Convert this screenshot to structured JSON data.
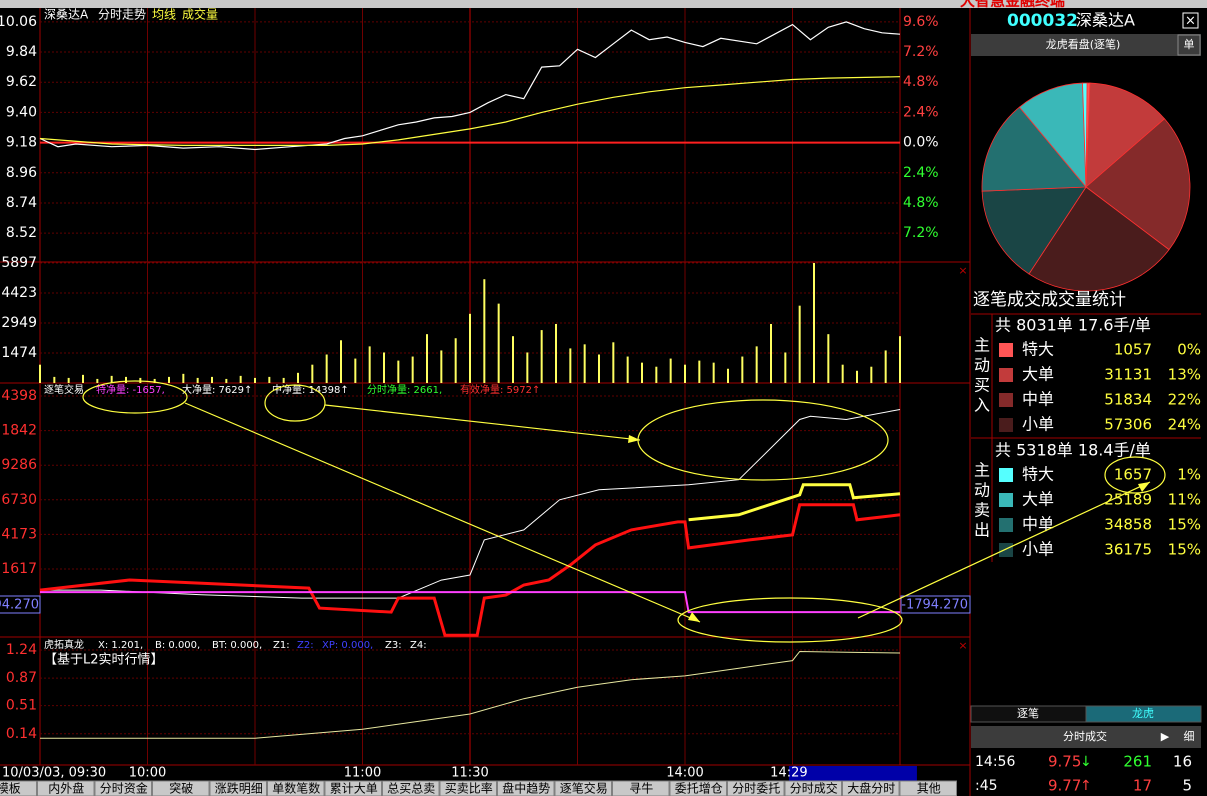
{
  "top_title": "大智慧金融终端",
  "header": {
    "title": "深桑达A",
    "items": [
      "分时走势",
      "均线",
      "成交量"
    ]
  },
  "time_axis": {
    "xlim": [
      0,
      240
    ],
    "ticks": [
      {
        "value": 0,
        "label": "10/03/03, 09:30"
      },
      {
        "value": 30,
        "label": "10:00"
      },
      {
        "value": 90,
        "label": "11:00"
      },
      {
        "value": 120,
        "label": "11:30"
      },
      {
        "value": 180,
        "label": "14:00"
      },
      {
        "value": 209,
        "label": "14:29"
      }
    ]
  },
  "price_panel": {
    "ylim": [
      8.31,
      10.11
    ],
    "yticks": [
      10.06,
      9.84,
      9.62,
      {
        "value": 9.4,
        "label": "9.40"
      },
      9.18,
      8.96,
      8.74,
      8.52
    ],
    "right_labels": [
      "9.6%",
      "7.2%",
      "4.8%",
      "2.4%",
      "0.0%",
      "2.4%",
      "4.8%",
      "7.2%"
    ],
    "series": [
      {
        "name": "价格",
        "color": "#ffffff",
        "x": [
          0,
          5,
          10,
          20,
          30,
          40,
          50,
          60,
          70,
          80,
          85,
          90,
          95,
          100,
          105,
          110,
          115,
          120,
          125,
          130,
          135,
          140,
          145,
          150,
          155,
          160,
          165,
          170,
          175,
          180,
          185,
          190,
          200,
          205,
          210,
          215,
          220,
          225,
          230,
          235,
          240
        ],
        "values": [
          9.21,
          9.15,
          9.17,
          9.15,
          9.16,
          9.14,
          9.15,
          9.13,
          9.15,
          9.17,
          9.21,
          9.23,
          9.27,
          9.31,
          9.33,
          9.36,
          9.37,
          9.4,
          9.47,
          9.53,
          9.5,
          9.73,
          9.74,
          9.86,
          9.8,
          9.9,
          10.0,
          9.93,
          9.95,
          9.91,
          9.88,
          9.94,
          9.9,
          9.97,
          10.04,
          9.93,
          10.02,
          10.06,
          10.01,
          9.98,
          9.97
        ]
      },
      {
        "name": "均线",
        "color": "#ffff40",
        "x": [
          0,
          20,
          40,
          60,
          80,
          90,
          100,
          110,
          120,
          130,
          140,
          150,
          160,
          170,
          180,
          190,
          200,
          210,
          220,
          240
        ],
        "values": [
          9.21,
          9.17,
          9.16,
          9.16,
          9.16,
          9.17,
          9.2,
          9.24,
          9.28,
          9.33,
          9.4,
          9.46,
          9.51,
          9.55,
          9.58,
          9.6,
          9.62,
          9.64,
          9.65,
          9.66
        ]
      }
    ]
  },
  "volume_panel": {
    "ylim": [
      0,
      5897
    ],
    "yticks": [
      5897,
      4423,
      2949,
      1474
    ],
    "color": "#ffff60",
    "x": [
      0,
      4,
      8,
      12,
      16,
      20,
      24,
      28,
      32,
      36,
      40,
      44,
      48,
      52,
      56,
      60,
      64,
      68,
      72,
      76,
      80,
      84,
      88,
      92,
      96,
      100,
      104,
      108,
      112,
      116,
      120,
      124,
      128,
      132,
      136,
      140,
      144,
      148,
      152,
      156,
      160,
      164,
      168,
      172,
      176,
      180,
      184,
      188,
      192,
      196,
      200,
      204,
      208,
      212,
      216,
      220,
      224,
      228,
      232,
      236,
      240
    ],
    "values": [
      900,
      300,
      250,
      400,
      200,
      350,
      300,
      250,
      200,
      300,
      450,
      250,
      300,
      200,
      350,
      250,
      300,
      250,
      500,
      900,
      1400,
      2100,
      1200,
      1800,
      1500,
      1100,
      1300,
      2400,
      1600,
      2200,
      3400,
      5100,
      3900,
      2300,
      1500,
      2600,
      2900,
      1700,
      1900,
      1400,
      2000,
      1300,
      1000,
      800,
      1200,
      900,
      1100,
      1000,
      700,
      1300,
      1800,
      2900,
      1500,
      3800,
      5897,
      2400,
      900,
      600,
      800,
      1600,
      2300
    ]
  },
  "flow_panel": {
    "header": [
      "逐笔交易",
      "特净量: -1657,",
      "大净量: 7629↑",
      "中净量: 14398↑",
      "分时净量: 2661,",
      "有效净量: 5972↑"
    ],
    "ylim": [
      -3407,
      15358
    ],
    "yticks": [
      {
        "value": 14398,
        "label": "4398"
      },
      {
        "value": 11842,
        "label": "1842"
      },
      9286,
      6730,
      4173,
      1617
    ],
    "net_label": "-1794.270",
    "series": [
      {
        "name": "有效净量",
        "color": "#ffffff",
        "width": 1,
        "x": [
          0,
          17,
          45,
          73,
          100,
          112,
          120,
          124,
          135,
          145,
          156,
          181,
          195,
          212,
          215,
          225,
          240
        ],
        "values": [
          61,
          61,
          -284,
          -532,
          -532,
          800,
          1172,
          3766,
          4507,
          6730,
          7471,
          7841,
          8212,
          12658,
          12900,
          12658,
          13399
        ]
      },
      {
        "name": "大净量",
        "color": "#ffff40",
        "width": 3,
        "x": [
          181,
          195,
          212,
          213,
          226,
          227,
          240
        ],
        "values": [
          5248,
          5618,
          7100,
          7841,
          7841,
          6878,
          7175
        ]
      },
      {
        "name": "中净量",
        "color": "#ff1010",
        "width": 3,
        "x": [
          0,
          25,
          75,
          78,
          98,
          100,
          110,
          113,
          122,
          124,
          130,
          135,
          142,
          148,
          155,
          165,
          178,
          180,
          181,
          198,
          210,
          212,
          227,
          228,
          240
        ],
        "values": [
          61,
          802,
          209,
          -1273,
          -1569,
          -532,
          -532,
          -3274,
          -3274,
          -532,
          -310,
          431,
          802,
          1913,
          3395,
          4507,
          5100,
          5100,
          3173,
          3766,
          4136,
          6359,
          6359,
          5248,
          5618
        ]
      },
      {
        "name": "特净量",
        "color": "#ff40ff",
        "width": 2,
        "x": [
          0,
          180,
          181,
          240
        ],
        "values": [
          -87,
          -87,
          -1569,
          -1569
        ]
      }
    ]
  },
  "dragon_panel": {
    "header": [
      "虎拓真龙",
      "X: 1.201,",
      "B: 0.000,",
      "BT: 0.000,",
      "Z1:",
      "Z2:",
      "XP: 0.000,",
      "Z3:",
      "Z4:"
    ],
    "subtitle": "【基于L2实时行情】",
    "ylim": [
      -0.27,
      1.41
    ],
    "yticks": [
      1.24,
      0.87,
      0.51,
      0.14
    ],
    "series": [
      {
        "name": "X",
        "color": "#e8e8a0",
        "x": [
          0,
          60,
          90,
          105,
          120,
          135,
          150,
          165,
          180,
          195,
          210,
          212,
          225,
          240
        ],
        "values": [
          0.08,
          0.08,
          0.2,
          0.3,
          0.4,
          0.6,
          0.75,
          0.85,
          0.9,
          1.0,
          1.1,
          1.22,
          1.21,
          1.2
        ]
      }
    ]
  },
  "side": {
    "code": "000032",
    "name": "深桑达A",
    "panel_title": "龙虎看盘(逐笔)",
    "unit_button": "单",
    "stats_title": "逐笔成交成交量统计",
    "buy": {
      "label": [
        "主",
        "动",
        "买",
        "入"
      ],
      "summary": "共 8031单 17.6手/单",
      "rows": [
        {
          "name": "特大",
          "value": 1057,
          "pct": "0%",
          "color": "#ff5555"
        },
        {
          "name": "大单",
          "value": 31131,
          "pct": "13%",
          "color": "#c23b3b"
        },
        {
          "name": "中单",
          "value": 51834,
          "pct": "22%",
          "color": "#852a2a"
        },
        {
          "name": "小单",
          "value": 57306,
          "pct": "24%",
          "color": "#4a1c1c"
        }
      ]
    },
    "sell": {
      "label": [
        "主",
        "动",
        "卖",
        "出"
      ],
      "summary": "共 5318单 18.4手/单",
      "rows": [
        {
          "name": "特大",
          "value": 1657,
          "pct": "1%",
          "color": "#55ffff"
        },
        {
          "name": "大单",
          "value": 25189,
          "pct": "11%",
          "color": "#3ab8b8"
        },
        {
          "name": "中单",
          "value": 34858,
          "pct": "15%",
          "color": "#237070"
        },
        {
          "name": "小单",
          "value": 36175,
          "pct": "15%",
          "color": "#1a4545"
        }
      ]
    },
    "tabs": [
      "逐笔",
      "龙虎"
    ],
    "trades_title": "分时成交",
    "detail_button": "细",
    "trades": [
      {
        "time": "14:56",
        "price": "9.75",
        "arrow": "↓",
        "volume": 261,
        "count": 16
      },
      {
        "time": ":45",
        "price": "9.77",
        "arrow": "↑",
        "volume": 17,
        "count": 5
      }
    ]
  },
  "bottom_tabs": [
    "模板",
    "内外盘",
    "分时资金",
    "突破",
    "涨跌明细",
    "单数笔数",
    "累计大单",
    "总买总卖",
    "买卖比率",
    "盘中趋势",
    "逐笔交易",
    "寻牛",
    "委托增仓",
    "分时委托",
    "分时成交",
    "大盘分时",
    "其他"
  ]
}
